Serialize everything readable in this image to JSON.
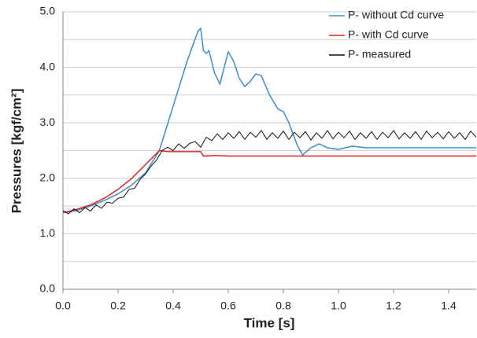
{
  "chart_data": {
    "type": "line",
    "x_label": "Time [s]",
    "y_label": "Pressures [kgf/cm²]",
    "xlim": [
      0,
      1.5
    ],
    "ylim": [
      0,
      5
    ],
    "xticks": [
      {
        "value": 0,
        "label": "0.0"
      },
      {
        "value": 0.2,
        "label": "0.2"
      },
      {
        "value": 0.4,
        "label": "0.4"
      },
      {
        "value": 0.6,
        "label": "0.6"
      },
      {
        "value": 0.8,
        "label": "0.8"
      },
      {
        "value": 1.0,
        "label": "1.0"
      },
      {
        "value": 1.2,
        "label": "1.2"
      },
      {
        "value": 1.4,
        "label": "1.4"
      }
    ],
    "yticks": [
      {
        "value": 0,
        "label": "0.0"
      },
      {
        "value": 1,
        "label": "1.0"
      },
      {
        "value": 2,
        "label": "2.0"
      },
      {
        "value": 3,
        "label": "3.0"
      },
      {
        "value": 4,
        "label": "4.0"
      },
      {
        "value": 5,
        "label": "5.0"
      }
    ],
    "yminor": [
      0.5,
      1.5,
      2.5,
      3.5,
      4.5
    ],
    "grid": true,
    "legend": "upper right",
    "series": [
      {
        "name": "P- without Cd curve",
        "color": "#3c8dc8",
        "x": [
          0,
          0.05,
          0.1,
          0.15,
          0.2,
          0.25,
          0.3,
          0.35,
          0.4,
          0.45,
          0.49,
          0.5,
          0.51,
          0.52,
          0.53,
          0.55,
          0.57,
          0.58,
          0.6,
          0.62,
          0.64,
          0.66,
          0.68,
          0.7,
          0.72,
          0.75,
          0.78,
          0.8,
          0.82,
          0.85,
          0.87,
          0.9,
          0.93,
          0.96,
          1.0,
          1.05,
          1.1,
          1.2,
          1.5
        ],
        "values": [
          1.38,
          1.42,
          1.5,
          1.6,
          1.72,
          1.88,
          2.1,
          2.5,
          3.3,
          4.1,
          4.65,
          4.7,
          4.3,
          4.25,
          4.3,
          3.9,
          3.7,
          3.9,
          4.28,
          4.1,
          3.8,
          3.65,
          3.75,
          3.88,
          3.85,
          3.5,
          3.25,
          3.2,
          3.0,
          2.6,
          2.42,
          2.55,
          2.62,
          2.55,
          2.52,
          2.58,
          2.55,
          2.55,
          2.55
        ]
      },
      {
        "name": "P- with Cd curve",
        "color": "#e02020",
        "x": [
          0,
          0.05,
          0.1,
          0.15,
          0.2,
          0.25,
          0.3,
          0.35,
          0.38,
          0.5,
          0.51,
          0.55,
          0.6,
          1.5
        ],
        "values": [
          1.38,
          1.44,
          1.52,
          1.64,
          1.8,
          2.0,
          2.25,
          2.5,
          2.48,
          2.48,
          2.4,
          2.41,
          2.4,
          2.4
        ]
      },
      {
        "name": "P- measured",
        "color": "#111111",
        "x": [
          0,
          0.02,
          0.04,
          0.06,
          0.08,
          0.1,
          0.12,
          0.14,
          0.16,
          0.18,
          0.2,
          0.22,
          0.24,
          0.26,
          0.28,
          0.3,
          0.32,
          0.34,
          0.36,
          0.38,
          0.4,
          0.42,
          0.44,
          0.46,
          0.48,
          0.5,
          0.52,
          0.54,
          0.56,
          0.58,
          0.6,
          0.62,
          0.64,
          0.66,
          0.68,
          0.7,
          0.72,
          0.74,
          0.76,
          0.78,
          0.8,
          0.82,
          0.84,
          0.86,
          0.88,
          0.9,
          0.92,
          0.94,
          0.96,
          0.98,
          1.0,
          1.02,
          1.04,
          1.06,
          1.08,
          1.1,
          1.12,
          1.14,
          1.16,
          1.18,
          1.2,
          1.22,
          1.24,
          1.26,
          1.28,
          1.3,
          1.32,
          1.34,
          1.36,
          1.38,
          1.4,
          1.42,
          1.44,
          1.46,
          1.48,
          1.5
        ],
        "values": [
          1.42,
          1.36,
          1.45,
          1.38,
          1.47,
          1.41,
          1.52,
          1.46,
          1.57,
          1.55,
          1.64,
          1.66,
          1.8,
          1.82,
          1.98,
          2.08,
          2.22,
          2.33,
          2.5,
          2.56,
          2.5,
          2.62,
          2.54,
          2.63,
          2.66,
          2.56,
          2.74,
          2.68,
          2.8,
          2.7,
          2.82,
          2.72,
          2.84,
          2.7,
          2.83,
          2.74,
          2.86,
          2.7,
          2.82,
          2.72,
          2.85,
          2.7,
          2.83,
          2.73,
          2.84,
          2.69,
          2.82,
          2.72,
          2.86,
          2.71,
          2.83,
          2.73,
          2.85,
          2.7,
          2.82,
          2.72,
          2.84,
          2.7,
          2.83,
          2.73,
          2.86,
          2.71,
          2.82,
          2.72,
          2.84,
          2.7,
          2.85,
          2.73,
          2.83,
          2.71,
          2.84,
          2.72,
          2.82,
          2.7,
          2.85,
          2.74
        ]
      }
    ]
  }
}
